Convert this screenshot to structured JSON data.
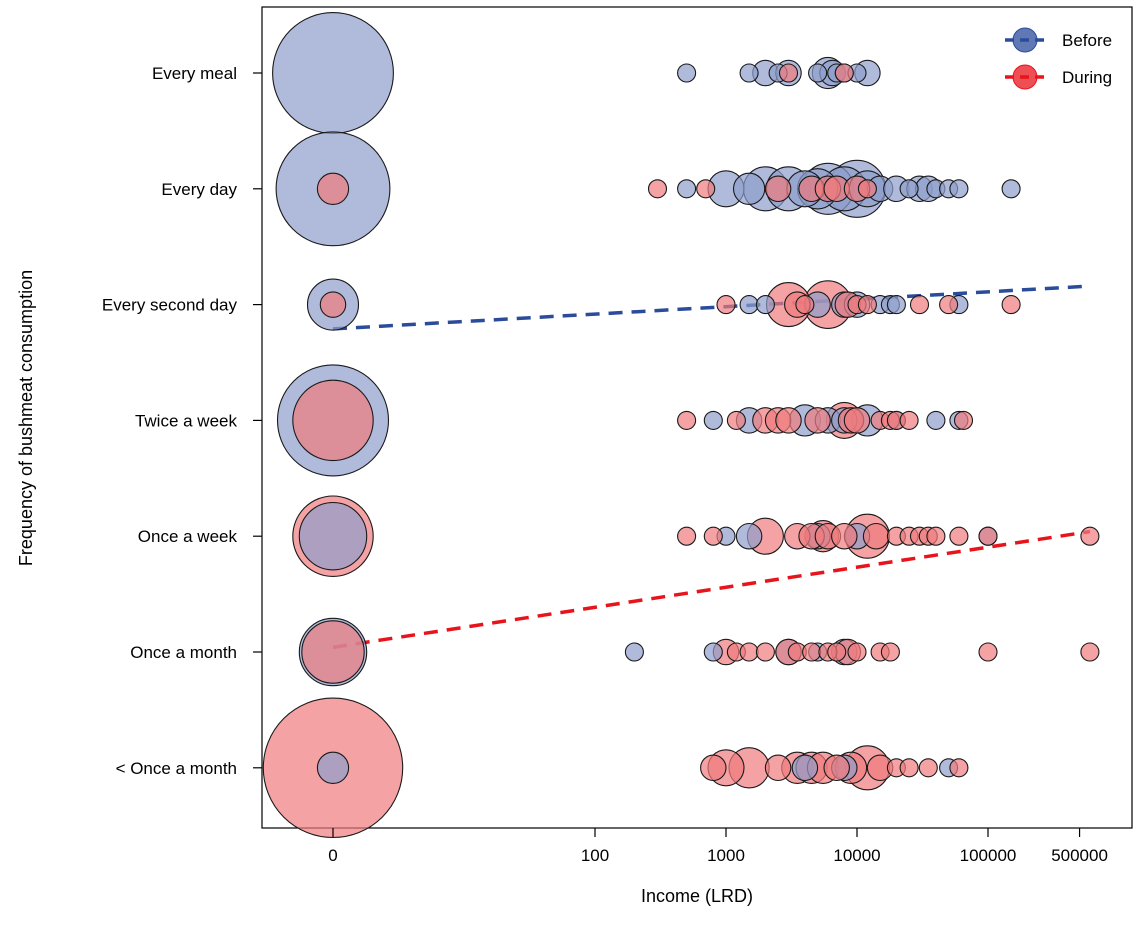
{
  "chart_data": {
    "type": "scatter",
    "title": "",
    "xlabel": "Income (LRD)",
    "ylabel": "Frequency of bushmeat consumption",
    "x_scale": "log10, with 0 shown as a separate point at the left",
    "x_ticks": [
      "0",
      "100",
      "1000",
      "10000",
      "100000",
      "500000"
    ],
    "y_categories": [
      "Every meal",
      "Every day",
      "Every second day",
      "Twice a week",
      "Once a week",
      "Once a month",
      "< Once a month"
    ],
    "legend": {
      "position": "top-right",
      "entries": [
        "Before",
        "During"
      ]
    },
    "grid": false,
    "colors": {
      "Before": "#2B4C9B",
      "During": "#E8141B"
    },
    "series": [
      {
        "name": "Before",
        "color": "#2B4C9B",
        "fill": "#8E9ECC",
        "points": [
          {
            "y": "Every meal",
            "x": 0,
            "size": 45
          },
          {
            "y": "Every meal",
            "x": 500,
            "size": 1
          },
          {
            "y": "Every meal",
            "x": 1500,
            "size": 1
          },
          {
            "y": "Every meal",
            "x": 2000,
            "size": 2
          },
          {
            "y": "Every meal",
            "x": 2500,
            "size": 1
          },
          {
            "y": "Every meal",
            "x": 3000,
            "size": 2
          },
          {
            "y": "Every meal",
            "x": 5000,
            "size": 1
          },
          {
            "y": "Every meal",
            "x": 6000,
            "size": 3
          },
          {
            "y": "Every meal",
            "x": 6500,
            "size": 2
          },
          {
            "y": "Every meal",
            "x": 7000,
            "size": 1
          },
          {
            "y": "Every meal",
            "x": 8000,
            "size": 1
          },
          {
            "y": "Every meal",
            "x": 10000,
            "size": 1
          },
          {
            "y": "Every meal",
            "x": 12000,
            "size": 2
          },
          {
            "y": "Every day",
            "x": 0,
            "size": 40
          },
          {
            "y": "Every day",
            "x": 500,
            "size": 1
          },
          {
            "y": "Every day",
            "x": 1000,
            "size": 4
          },
          {
            "y": "Every day",
            "x": 1500,
            "size": 3
          },
          {
            "y": "Every day",
            "x": 2000,
            "size": 6
          },
          {
            "y": "Every day",
            "x": 3000,
            "size": 6
          },
          {
            "y": "Every day",
            "x": 4000,
            "size": 4
          },
          {
            "y": "Every day",
            "x": 5000,
            "size": 5
          },
          {
            "y": "Every day",
            "x": 6000,
            "size": 8
          },
          {
            "y": "Every day",
            "x": 8000,
            "size": 6
          },
          {
            "y": "Every day",
            "x": 10000,
            "size": 10
          },
          {
            "y": "Every day",
            "x": 12000,
            "size": 4
          },
          {
            "y": "Every day",
            "x": 15000,
            "size": 2
          },
          {
            "y": "Every day",
            "x": 20000,
            "size": 2
          },
          {
            "y": "Every day",
            "x": 25000,
            "size": 1
          },
          {
            "y": "Every day",
            "x": 30000,
            "size": 2
          },
          {
            "y": "Every day",
            "x": 35000,
            "size": 2
          },
          {
            "y": "Every day",
            "x": 40000,
            "size": 1
          },
          {
            "y": "Every day",
            "x": 50000,
            "size": 1
          },
          {
            "y": "Every day",
            "x": 60000,
            "size": 1
          },
          {
            "y": "Every day",
            "x": 150000,
            "size": 1
          },
          {
            "y": "Every second day",
            "x": 0,
            "size": 8
          },
          {
            "y": "Every second day",
            "x": 1500,
            "size": 1
          },
          {
            "y": "Every second day",
            "x": 2000,
            "size": 1
          },
          {
            "y": "Every second day",
            "x": 5000,
            "size": 2
          },
          {
            "y": "Every second day",
            "x": 8000,
            "size": 2
          },
          {
            "y": "Every second day",
            "x": 10000,
            "size": 2
          },
          {
            "y": "Every second day",
            "x": 15000,
            "size": 1
          },
          {
            "y": "Every second day",
            "x": 18000,
            "size": 1
          },
          {
            "y": "Every second day",
            "x": 20000,
            "size": 1
          },
          {
            "y": "Every second day",
            "x": 60000,
            "size": 1
          },
          {
            "y": "Twice a week",
            "x": 0,
            "size": 38
          },
          {
            "y": "Twice a week",
            "x": 800,
            "size": 1
          },
          {
            "y": "Twice a week",
            "x": 1500,
            "size": 2
          },
          {
            "y": "Twice a week",
            "x": 4000,
            "size": 3
          },
          {
            "y": "Twice a week",
            "x": 6000,
            "size": 2
          },
          {
            "y": "Twice a week",
            "x": 8000,
            "size": 2
          },
          {
            "y": "Twice a week",
            "x": 12000,
            "size": 3
          },
          {
            "y": "Twice a week",
            "x": 20000,
            "size": 1
          },
          {
            "y": "Twice a week",
            "x": 40000,
            "size": 1
          },
          {
            "y": "Twice a week",
            "x": 60000,
            "size": 1
          },
          {
            "y": "Once a week",
            "x": 0,
            "size": 14
          },
          {
            "y": "Once a week",
            "x": 1000,
            "size": 1
          },
          {
            "y": "Once a week",
            "x": 1500,
            "size": 2
          },
          {
            "y": "Once a week",
            "x": 5000,
            "size": 2
          },
          {
            "y": "Once a week",
            "x": 10000,
            "size": 2
          },
          {
            "y": "Once a week",
            "x": 100000,
            "size": 1
          },
          {
            "y": "Once a month",
            "x": 0,
            "size": 14
          },
          {
            "y": "Once a month",
            "x": 200,
            "size": 1
          },
          {
            "y": "Once a month",
            "x": 800,
            "size": 1
          },
          {
            "y": "Once a month",
            "x": 3000,
            "size": 2
          },
          {
            "y": "Once a month",
            "x": 5000,
            "size": 1
          },
          {
            "y": "Once a month",
            "x": 8000,
            "size": 2
          },
          {
            "y": "< Once a month",
            "x": 0,
            "size": 3
          },
          {
            "y": "< Once a month",
            "x": 4000,
            "size": 2
          },
          {
            "y": "< Once a month",
            "x": 8000,
            "size": 2
          },
          {
            "y": "< Once a month",
            "x": 50000,
            "size": 1
          }
        ],
        "trend_line": [
          {
            "x": 0,
            "y": "Every second day",
            "offset": -0.21
          },
          {
            "x": 600000,
            "y": "Every second day",
            "offset": 0.16
          }
        ]
      },
      {
        "name": "During",
        "color": "#E8141B",
        "fill": "#F07A7E",
        "points": [
          {
            "y": "Every meal",
            "x": 3000,
            "size": 1
          },
          {
            "y": "Every meal",
            "x": 8000,
            "size": 1
          },
          {
            "y": "Every day",
            "x": 0,
            "size": 3
          },
          {
            "y": "Every day",
            "x": 300,
            "size": 1
          },
          {
            "y": "Every day",
            "x": 700,
            "size": 1
          },
          {
            "y": "Every day",
            "x": 2500,
            "size": 2
          },
          {
            "y": "Every day",
            "x": 4500,
            "size": 2
          },
          {
            "y": "Every day",
            "x": 6000,
            "size": 2
          },
          {
            "y": "Every day",
            "x": 7000,
            "size": 2
          },
          {
            "y": "Every day",
            "x": 10000,
            "size": 2
          },
          {
            "y": "Every day",
            "x": 12000,
            "size": 1
          },
          {
            "y": "Every second day",
            "x": 0,
            "size": 2
          },
          {
            "y": "Every second day",
            "x": 1000,
            "size": 1
          },
          {
            "y": "Every second day",
            "x": 3000,
            "size": 6
          },
          {
            "y": "Every second day",
            "x": 3500,
            "size": 2
          },
          {
            "y": "Every second day",
            "x": 4000,
            "size": 1
          },
          {
            "y": "Every second day",
            "x": 6000,
            "size": 7
          },
          {
            "y": "Every second day",
            "x": 8500,
            "size": 2
          },
          {
            "y": "Every second day",
            "x": 10000,
            "size": 1
          },
          {
            "y": "Every second day",
            "x": 12000,
            "size": 1
          },
          {
            "y": "Every second day",
            "x": 30000,
            "size": 1
          },
          {
            "y": "Every second day",
            "x": 50000,
            "size": 1
          },
          {
            "y": "Every second day",
            "x": 150000,
            "size": 1
          },
          {
            "y": "Twice a week",
            "x": 0,
            "size": 20
          },
          {
            "y": "Twice a week",
            "x": 500,
            "size": 1
          },
          {
            "y": "Twice a week",
            "x": 1200,
            "size": 1
          },
          {
            "y": "Twice a week",
            "x": 2000,
            "size": 2
          },
          {
            "y": "Twice a week",
            "x": 2500,
            "size": 2
          },
          {
            "y": "Twice a week",
            "x": 3000,
            "size": 2
          },
          {
            "y": "Twice a week",
            "x": 5000,
            "size": 2
          },
          {
            "y": "Twice a week",
            "x": 8000,
            "size": 4
          },
          {
            "y": "Twice a week",
            "x": 9000,
            "size": 2
          },
          {
            "y": "Twice a week",
            "x": 10000,
            "size": 2
          },
          {
            "y": "Twice a week",
            "x": 15000,
            "size": 1
          },
          {
            "y": "Twice a week",
            "x": 18000,
            "size": 1
          },
          {
            "y": "Twice a week",
            "x": 20000,
            "size": 1
          },
          {
            "y": "Twice a week",
            "x": 25000,
            "size": 1
          },
          {
            "y": "Twice a week",
            "x": 65000,
            "size": 1
          },
          {
            "y": "Once a week",
            "x": 0,
            "size": 20
          },
          {
            "y": "Once a week",
            "x": 500,
            "size": 1
          },
          {
            "y": "Once a week",
            "x": 800,
            "size": 1
          },
          {
            "y": "Once a week",
            "x": 2000,
            "size": 4
          },
          {
            "y": "Once a week",
            "x": 3500,
            "size": 2
          },
          {
            "y": "Once a week",
            "x": 4500,
            "size": 2
          },
          {
            "y": "Once a week",
            "x": 5500,
            "size": 3
          },
          {
            "y": "Once a week",
            "x": 6000,
            "size": 2
          },
          {
            "y": "Once a week",
            "x": 8000,
            "size": 2
          },
          {
            "y": "Once a week",
            "x": 12000,
            "size": 6
          },
          {
            "y": "Once a week",
            "x": 14000,
            "size": 2
          },
          {
            "y": "Once a week",
            "x": 20000,
            "size": 1
          },
          {
            "y": "Once a week",
            "x": 25000,
            "size": 1
          },
          {
            "y": "Once a week",
            "x": 30000,
            "size": 1
          },
          {
            "y": "Once a week",
            "x": 35000,
            "size": 1
          },
          {
            "y": "Once a week",
            "x": 40000,
            "size": 1
          },
          {
            "y": "Once a week",
            "x": 60000,
            "size": 1
          },
          {
            "y": "Once a week",
            "x": 100000,
            "size": 1
          },
          {
            "y": "Once a week",
            "x": 600000,
            "size": 1
          },
          {
            "y": "Once a month",
            "x": 0,
            "size": 12
          },
          {
            "y": "Once a month",
            "x": 1000,
            "size": 2
          },
          {
            "y": "Once a month",
            "x": 1200,
            "size": 1
          },
          {
            "y": "Once a month",
            "x": 1500,
            "size": 1
          },
          {
            "y": "Once a month",
            "x": 2000,
            "size": 1
          },
          {
            "y": "Once a month",
            "x": 3000,
            "size": 2
          },
          {
            "y": "Once a month",
            "x": 3500,
            "size": 1
          },
          {
            "y": "Once a month",
            "x": 4500,
            "size": 1
          },
          {
            "y": "Once a month",
            "x": 6000,
            "size": 1
          },
          {
            "y": "Once a month",
            "x": 7000,
            "size": 1
          },
          {
            "y": "Once a month",
            "x": 8500,
            "size": 2
          },
          {
            "y": "Once a month",
            "x": 10000,
            "size": 1
          },
          {
            "y": "Once a month",
            "x": 15000,
            "size": 1
          },
          {
            "y": "Once a month",
            "x": 18000,
            "size": 1
          },
          {
            "y": "Once a month",
            "x": 100000,
            "size": 1
          },
          {
            "y": "Once a month",
            "x": 600000,
            "size": 1
          },
          {
            "y": "< Once a month",
            "x": 0,
            "size": 60
          },
          {
            "y": "< Once a month",
            "x": 800,
            "size": 2
          },
          {
            "y": "< Once a month",
            "x": 1000,
            "size": 4
          },
          {
            "y": "< Once a month",
            "x": 1500,
            "size": 5
          },
          {
            "y": "< Once a month",
            "x": 2500,
            "size": 2
          },
          {
            "y": "< Once a month",
            "x": 3500,
            "size": 3
          },
          {
            "y": "< Once a month",
            "x": 4500,
            "size": 3
          },
          {
            "y": "< Once a month",
            "x": 5500,
            "size": 3
          },
          {
            "y": "< Once a month",
            "x": 7000,
            "size": 2
          },
          {
            "y": "< Once a month",
            "x": 9000,
            "size": 3
          },
          {
            "y": "< Once a month",
            "x": 12000,
            "size": 6
          },
          {
            "y": "< Once a month",
            "x": 15000,
            "size": 2
          },
          {
            "y": "< Once a month",
            "x": 20000,
            "size": 1
          },
          {
            "y": "< Once a month",
            "x": 25000,
            "size": 1
          },
          {
            "y": "< Once a month",
            "x": 35000,
            "size": 1
          },
          {
            "y": "< Once a month",
            "x": 60000,
            "size": 1
          }
        ],
        "trend_line": [
          {
            "x": 0,
            "y": "Once a month",
            "offset": 0.04
          },
          {
            "x": 600000,
            "y": "Once a week",
            "offset": 0.04
          }
        ]
      }
    ]
  }
}
